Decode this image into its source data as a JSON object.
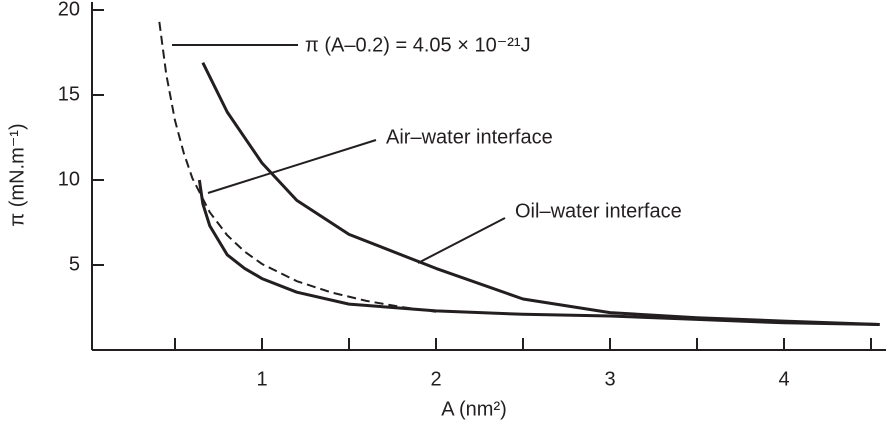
{
  "chart_data": {
    "type": "line",
    "xlabel": "A (nm²)",
    "ylabel": "π (mN.m⁻¹)",
    "annotations": [
      {
        "text": "π (A–0.2) = 4.05 × 10⁻²¹J"
      }
    ],
    "xlim": [
      0,
      4.6
    ],
    "ylim": [
      0,
      20
    ],
    "xticks": [
      1,
      2,
      3,
      4
    ],
    "xminorticks": [
      0.5,
      1.5,
      2.5,
      3.5,
      4.5
    ],
    "yticks": [
      5,
      10,
      15,
      20
    ],
    "series": [
      {
        "color": "#231f20",
        "dashed": true,
        "x": [
          0.41,
          0.45,
          0.5,
          0.55,
          0.6,
          0.7,
          0.8,
          0.9,
          1.0,
          1.2,
          1.4,
          1.6,
          1.8,
          2.0
        ],
        "values": [
          19.3,
          16.2,
          13.5,
          11.6,
          10.1,
          8.1,
          6.75,
          5.79,
          5.06,
          4.05,
          3.38,
          2.89,
          2.53,
          2.25
        ]
      },
      {
        "name": "Air–water interface",
        "color": "#231f20",
        "x": [
          0.64,
          0.66,
          0.7,
          0.8,
          0.9,
          1.0,
          1.2,
          1.5,
          2.0,
          2.5,
          3.0,
          3.5,
          4.0,
          4.55
        ],
        "values": [
          10,
          8.6,
          7.3,
          5.6,
          4.8,
          4.2,
          3.4,
          2.7,
          2.3,
          2.1,
          2.0,
          1.8,
          1.6,
          1.5
        ]
      },
      {
        "name": "Oil–water interface",
        "color": "#231f20",
        "x": [
          0.66,
          0.8,
          1.0,
          1.2,
          1.5,
          2.0,
          2.5,
          3.0,
          3.5,
          4.0,
          4.55
        ],
        "values": [
          16.9,
          14,
          11,
          8.8,
          6.8,
          4.8,
          3.0,
          2.2,
          1.9,
          1.7,
          1.5
        ]
      }
    ]
  }
}
